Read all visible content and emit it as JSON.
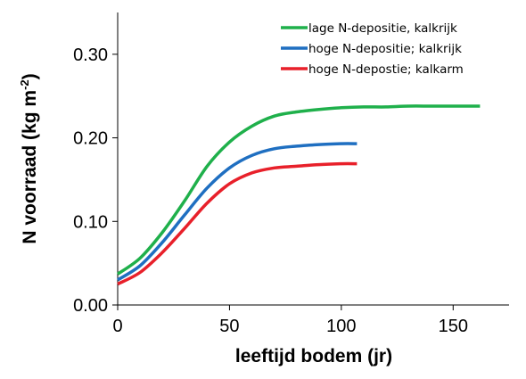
{
  "chart_data": {
    "type": "line",
    "xlabel": "leeftijd bodem (jr)",
    "ylabel_main": "N voorraad (kg m",
    "ylabel_sup": "-2",
    "ylabel_close": ")",
    "xlim": [
      0,
      175
    ],
    "ylim": [
      0,
      0.35
    ],
    "x_ticks": [
      0,
      50,
      100,
      150
    ],
    "x_tick_labels": [
      "0",
      "50",
      "100",
      "150"
    ],
    "y_ticks": [
      0,
      0.1,
      0.2,
      0.3
    ],
    "y_tick_labels": [
      "0.00",
      "0.10",
      "0.20",
      "0.30"
    ],
    "grid": false,
    "legend_position": "top-right",
    "series": [
      {
        "name": "lage N-depositie, kalkrijk",
        "color": "#1fb04b",
        "x": [
          0,
          10,
          20,
          30,
          40,
          50,
          60,
          70,
          80,
          90,
          100,
          110,
          120,
          130,
          140,
          150,
          162
        ],
        "y": [
          0.037,
          0.056,
          0.087,
          0.125,
          0.166,
          0.195,
          0.214,
          0.226,
          0.231,
          0.234,
          0.236,
          0.237,
          0.237,
          0.238,
          0.238,
          0.238,
          0.238
        ]
      },
      {
        "name": "hoge N-depositie; kalkrijk",
        "color": "#1f6fc1",
        "x": [
          0,
          10,
          20,
          30,
          40,
          50,
          60,
          70,
          80,
          90,
          100,
          107
        ],
        "y": [
          0.03,
          0.047,
          0.075,
          0.108,
          0.14,
          0.164,
          0.179,
          0.187,
          0.19,
          0.192,
          0.193,
          0.193
        ]
      },
      {
        "name": "hoge N-depostie; kalkarm",
        "color": "#e8202a",
        "x": [
          0,
          10,
          20,
          30,
          40,
          50,
          60,
          70,
          80,
          90,
          100,
          107
        ],
        "y": [
          0.025,
          0.039,
          0.063,
          0.092,
          0.122,
          0.145,
          0.158,
          0.164,
          0.166,
          0.168,
          0.169,
          0.169
        ]
      }
    ]
  }
}
